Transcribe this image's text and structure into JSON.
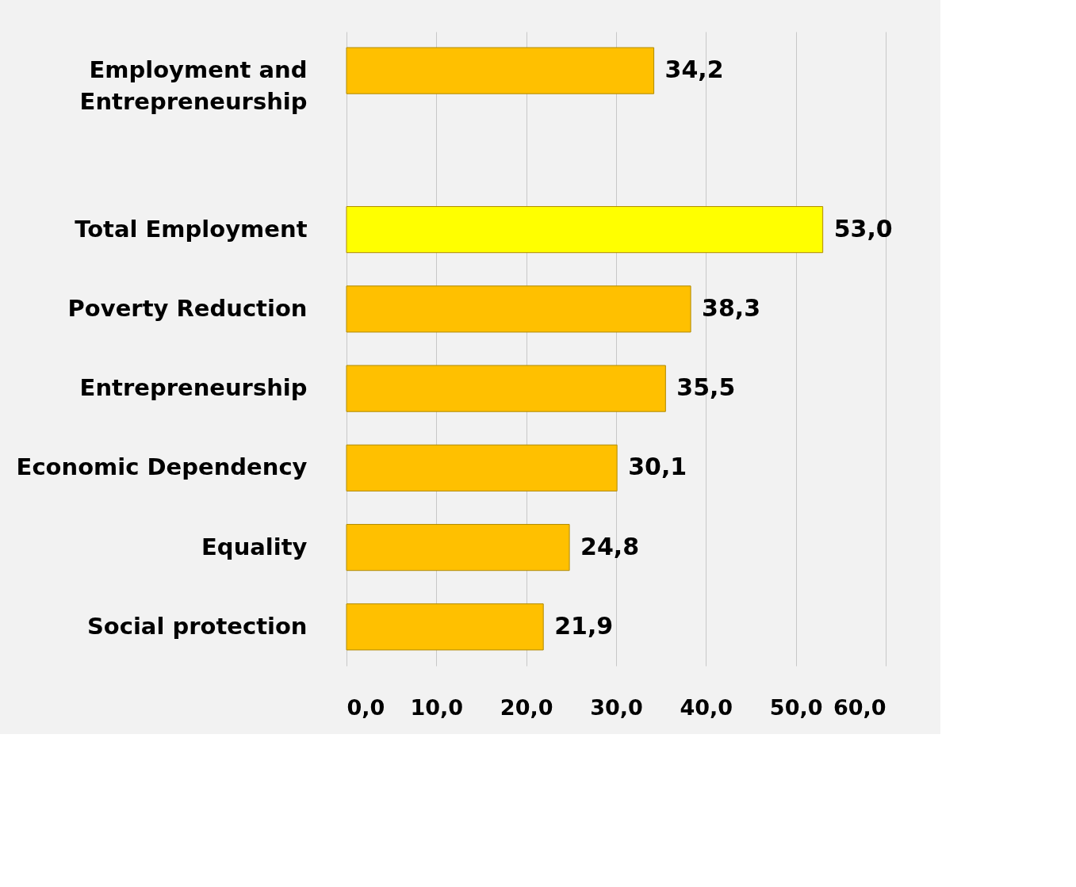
{
  "chart_data": {
    "type": "bar",
    "orientation": "horizontal",
    "categories": [
      "Employment and Entrepreneurship",
      null,
      "Total Employment",
      "Poverty Reduction",
      "Entrepreneurship",
      "Economic Dependency",
      "Equality",
      "Social protection"
    ],
    "values": [
      34.2,
      null,
      53.0,
      38.3,
      35.5,
      30.1,
      24.8,
      21.9
    ],
    "colors": [
      "#ffc000",
      null,
      "#ffff00",
      "#ffc000",
      "#ffc000",
      "#ffc000",
      "#ffc000",
      "#ffc000"
    ],
    "value_labels": [
      "34,2",
      null,
      "53,0",
      "38,3",
      "35,5",
      "30,1",
      "24,8",
      "21,9"
    ],
    "xlim": [
      0,
      60
    ],
    "xticks": [
      {
        "value": 0,
        "label": "0,0"
      },
      {
        "value": 10,
        "label": "10,0"
      },
      {
        "value": 20,
        "label": "20,0"
      },
      {
        "value": 30,
        "label": "30,0"
      },
      {
        "value": 40,
        "label": "40,0"
      },
      {
        "value": 50,
        "label": "50,0"
      },
      {
        "value": 60,
        "label": "60,0"
      }
    ],
    "grid": "x"
  }
}
